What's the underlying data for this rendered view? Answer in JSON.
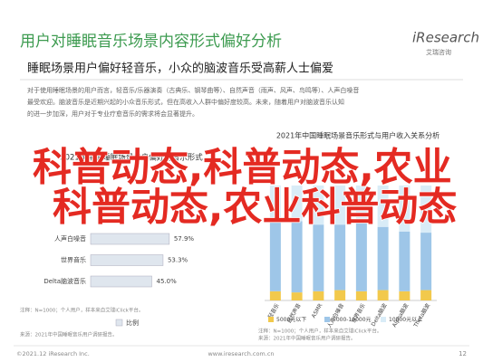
{
  "header": {
    "title": "用户对睡眠音乐场景内容形式偏好分析",
    "logo": "iResearch",
    "logo_sub": "艾瑞咨询",
    "subtitle": "睡眠场景用户偏好轻音乐，小众的脑波音乐受高薪人士偏爱",
    "paragraph": [
      "对于使用睡眠场景的用户而言，轻音乐/乐器演奏（古典乐、钢琴曲等）、自然声音（雨声、风声、鸟鸣等）、人声白噪音",
      "最受欢迎。脑波音乐是近期兴起的小众音乐形式，但在高收入人群中偏好度较高。未来，随着用户对脑波音乐认知",
      "的进一步加深，用户对于专业疗愈音乐的需求将会显著提升。"
    ]
  },
  "chart_data": [
    {
      "type": "bar",
      "horizontal": true,
      "title": "2021年中国睡眠场景用户偏好的音乐形式",
      "categories": [
        "人声白噪音",
        "世界音乐",
        "Delta脑波音乐"
      ],
      "series": [
        {
          "name": "比例",
          "color": "#dfe6ee",
          "values": [
            57.9,
            53.3,
            45.0
          ],
          "value_labels": [
            "57.9%",
            "53.3%",
            "45.0%"
          ]
        }
      ],
      "xlim": [
        0,
        100
      ],
      "note": "注释：N=1000；个人用户，样本来自艾瑞iClick平台。",
      "source": "来源：2021年中国睡眠音乐用户调研报告。"
    },
    {
      "type": "stacked-bar",
      "title": "2021年中国睡眠场景音乐形式与用户收入关系分析",
      "categories": [
        "轻音乐",
        "自然声音",
        "ASMR",
        "人声白噪音",
        "世界音乐",
        "Delta脑波",
        "Alpha脑波",
        "Theta脑波"
      ],
      "series": [
        {
          "name": "5000元以下",
          "color": "#f2c94c",
          "values": [
            8,
            7,
            8,
            9,
            8,
            9,
            8,
            9
          ]
        },
        {
          "name": "5000-10000元",
          "color": "#9ec6e8",
          "values": [
            60,
            62,
            58,
            57,
            60,
            55,
            52,
            50
          ]
        },
        {
          "name": "10000元以上",
          "color": "#d9ecf7",
          "values": [
            32,
            31,
            34,
            34,
            32,
            36,
            40,
            41
          ]
        }
      ],
      "ylim": [
        0,
        100
      ],
      "note": "注释：N=1000；个人用户，样本来自艾瑞iClick平台。",
      "source": "来源：2021年中国睡眠音乐用户调研报告。"
    }
  ],
  "overlay": [
    "科普动态,科普动态,农业",
    "科普动态,农业科普动态"
  ],
  "footer": {
    "copyright": "©2021.12 iResearch Inc.",
    "url": "www.iresearch.com.cn",
    "page": "12"
  }
}
